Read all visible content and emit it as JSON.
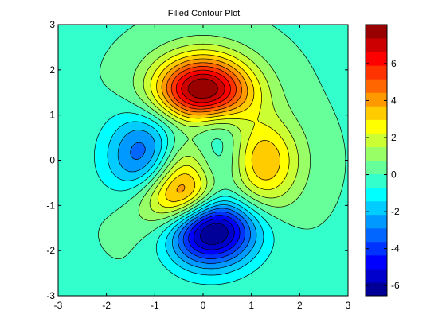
{
  "chart_data": {
    "type": "heatmap",
    "subtype": "filled-contour",
    "title": "Filled Contour Plot",
    "xlabel": "",
    "ylabel": "",
    "xlim": [
      -3,
      3
    ],
    "ylim": [
      -3,
      3
    ],
    "x_ticks": [
      "-3",
      "-2",
      "-1",
      "0",
      "1",
      "2",
      "3"
    ],
    "y_ticks": [
      "-3",
      "-2",
      "-1",
      "0",
      "1",
      "2",
      "3"
    ],
    "function": "peaks",
    "contour_levels": 20,
    "grid": false,
    "colormap": "jet",
    "colorbar": {
      "range": [
        -6.55,
        8.1
      ],
      "ticks": [
        "6",
        "4",
        "2",
        "0",
        "-2",
        "-4",
        "-6"
      ]
    },
    "features": [
      {
        "kind": "maximum",
        "x": -0.01,
        "y": 1.58,
        "value": 8.1
      },
      {
        "kind": "minimum",
        "x": 0.23,
        "y": -1.63,
        "value": -6.55
      },
      {
        "kind": "minimum",
        "x": -1.35,
        "y": 0.2,
        "value": -3.05
      },
      {
        "kind": "maximum",
        "x": 1.29,
        "y": -0.01,
        "value": 3.78
      },
      {
        "kind": "maximum",
        "x": -0.46,
        "y": -0.63,
        "value": 3.59
      }
    ]
  },
  "colors": {
    "background": "#ffffff",
    "axis": "#000000",
    "contour_line": "#000000"
  }
}
